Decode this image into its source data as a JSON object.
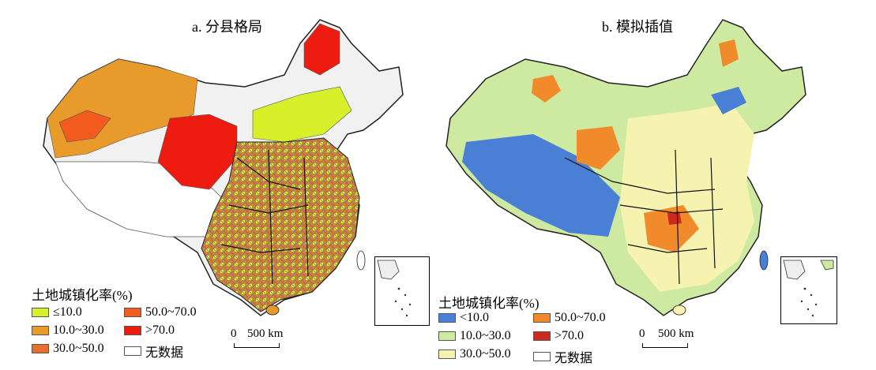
{
  "panel_a": {
    "title": "a. 分县格局",
    "legend": {
      "title": "土地城镇化率(%)",
      "items": [
        {
          "label": "≤10.0",
          "color": "#d7f02a"
        },
        {
          "label": "50.0~70.0",
          "color": "#f25a1e"
        },
        {
          "label": "10.0~30.0",
          "color": "#e89a2a"
        },
        {
          "label": ">70.0",
          "color": "#ee1c10"
        },
        {
          "label": "30.0~50.0",
          "color": "#e8702a"
        },
        {
          "label": "无数据",
          "color": "#ffffff"
        }
      ]
    },
    "scale": {
      "zero": "0",
      "distance": "500 km"
    }
  },
  "panel_b": {
    "title": "b. 模拟插值",
    "legend": {
      "title": "土地城镇化率(%)",
      "items": [
        {
          "label": "<10.0",
          "color": "#4a7fd6"
        },
        {
          "label": "50.0~70.0",
          "color": "#f08a2a"
        },
        {
          "label": "10.0~30.0",
          "color": "#cdeaa0"
        },
        {
          "label": ">70.0",
          "color": "#cc2a1e"
        },
        {
          "label": "30.0~50.0",
          "color": "#f6f3b0"
        },
        {
          "label": "无数据",
          "color": "#ffffff"
        }
      ]
    },
    "scale": {
      "zero": "0",
      "distance": "500 km"
    }
  }
}
